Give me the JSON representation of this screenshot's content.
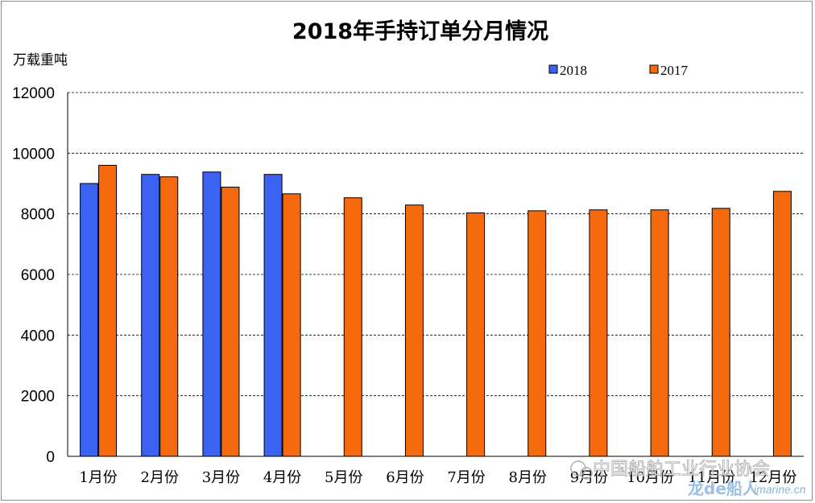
{
  "chart_data": {
    "type": "bar",
    "title": "2018年手持订单分月情况",
    "ylabel": "万载重吨",
    "xlabel": "",
    "ylim": [
      0,
      12000
    ],
    "yticks": [
      0,
      2000,
      4000,
      6000,
      8000,
      10000,
      12000
    ],
    "grid": true,
    "legend_position": "top-right",
    "categories": [
      "1月份",
      "2月份",
      "3月份",
      "4月份",
      "5月份",
      "6月份",
      "7月份",
      "8月份",
      "9月份",
      "10月份",
      "11月份",
      "12月份"
    ],
    "series": [
      {
        "name": "2018",
        "color": "#3b62f0",
        "values": [
          9000,
          9300,
          9380,
          9300,
          null,
          null,
          null,
          null,
          null,
          null,
          null,
          null
        ]
      },
      {
        "name": "2017",
        "color": "#f56a0e",
        "values": [
          9600,
          9220,
          8880,
          8660,
          8530,
          8290,
          8030,
          8100,
          8130,
          8130,
          8180,
          8740
        ]
      }
    ]
  },
  "watermark": {
    "line1": "中国船舶工业行业协会",
    "brand_cn": "龙de船人",
    "brand_url": "imarine.cn"
  }
}
